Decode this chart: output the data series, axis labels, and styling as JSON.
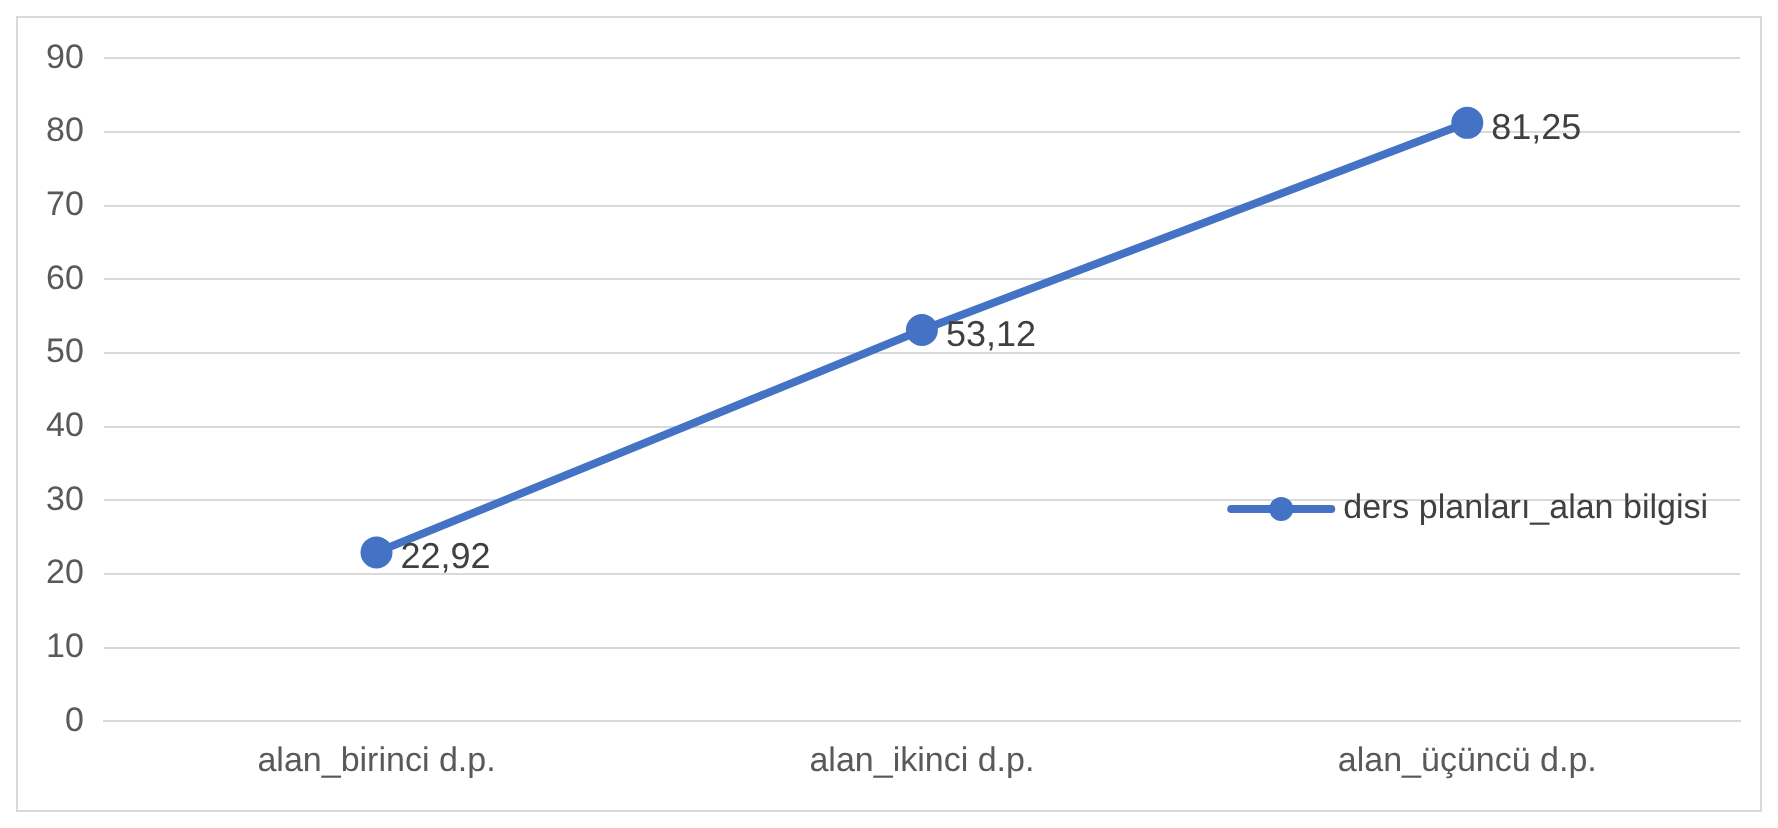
{
  "chart_data": {
    "type": "line",
    "categories": [
      "alan_birinci d.p.",
      "alan_ikinci d.p.",
      "alan_üçüncü d.p."
    ],
    "series": [
      {
        "name": "ders planları_alan bilgisi",
        "color": "#4472c4",
        "values": [
          22.92,
          53.12,
          81.25
        ],
        "value_labels": [
          "22,92",
          "53,12",
          "81,25"
        ]
      }
    ],
    "ylim": [
      0,
      90
    ],
    "yticks": [
      0,
      10,
      20,
      30,
      40,
      50,
      60,
      70,
      80,
      90
    ],
    "grid": "y",
    "legend": "right",
    "marker": "circle",
    "line_style": "solid"
  }
}
